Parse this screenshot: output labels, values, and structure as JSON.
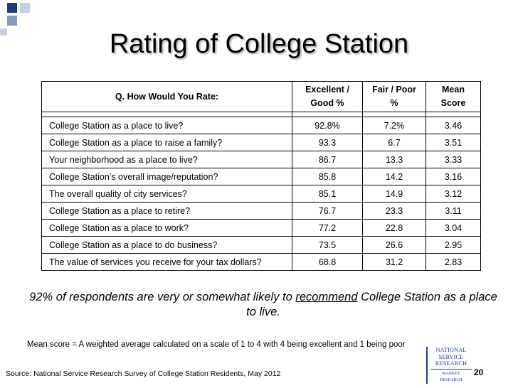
{
  "slide": {
    "title": "Rating of College Station",
    "page_number": "20"
  },
  "table": {
    "headers": {
      "question": "Q. How Would You Rate:",
      "excellent_line1": "Excellent /",
      "excellent_line2": "Good %",
      "fair_line1": "Fair / Poor",
      "fair_line2": "%",
      "mean_line1": "Mean",
      "mean_line2": "Score"
    },
    "rows": [
      {
        "label": "College Station as a place to live?",
        "excellent_good": "92.8%",
        "fair_poor": "7.2%",
        "mean": "3.46"
      },
      {
        "label": "College Station as a place to raise a family?",
        "excellent_good": "93.3",
        "fair_poor": "6.7",
        "mean": "3.51"
      },
      {
        "label": "Your neighborhood as a place to live?",
        "excellent_good": "86.7",
        "fair_poor": "13.3",
        "mean": "3.33"
      },
      {
        "label": "College Station’s overall image/reputation?",
        "excellent_good": "85.8",
        "fair_poor": "14.2",
        "mean": "3.16"
      },
      {
        "label": "The overall quality of city services?",
        "excellent_good": "85.1",
        "fair_poor": "14.9",
        "mean": "3.12"
      },
      {
        "label": "College Station as a place to retire?",
        "excellent_good": "76.7",
        "fair_poor": "23.3",
        "mean": "3.11"
      },
      {
        "label": "College Station as a place to work?",
        "excellent_good": "77.2",
        "fair_poor": "22.8",
        "mean": "3.04"
      },
      {
        "label": "College Station as a place to do business?",
        "excellent_good": "73.5",
        "fair_poor": "26.6",
        "mean": "2.95"
      },
      {
        "label": "The value of services you receive for your tax dollars?",
        "excellent_good": "68.8",
        "fair_poor": "31.2",
        "mean": "2.83"
      }
    ]
  },
  "callout": {
    "before": "92% of respondents are very or somewhat likely to ",
    "emphasis": "recommend",
    "after": " College Station as a place to live."
  },
  "mean_note": "Mean score = A weighted average calculated on a scale of 1 to 4 with 4 being excellent and 1 being poor",
  "source": "Source: National Service Research Survey of College Station Residents, May 2012",
  "logo": {
    "line1": "NATIONAL",
    "line2": "SERVICE",
    "line3": "RESEARCH",
    "line4": "MARKET RESEARCH"
  },
  "colors": {
    "brand_blue": "#1f3f7a",
    "light_square": "#c7cfe0"
  }
}
